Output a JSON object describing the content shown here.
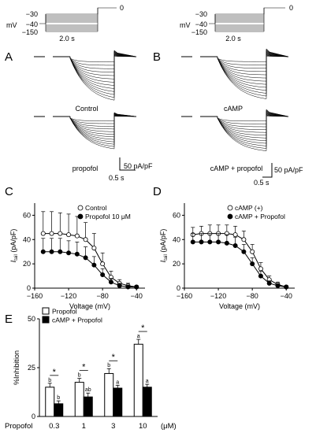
{
  "protocol": {
    "left": {
      "v_top": "−30",
      "v_top_right": "0",
      "v_mid": "−40",
      "v_bot": "−150",
      "unit": "mV",
      "duration": "2.0 s"
    },
    "right": {
      "v_top": "−30",
      "v_top_right": "0",
      "v_mid": "−40",
      "v_bot": "−150",
      "unit": "mV",
      "duration": "2.0 s"
    }
  },
  "panels": {
    "A": "A",
    "B": "B",
    "C": "C",
    "D": "D",
    "E": "E"
  },
  "traces": {
    "A_top_label": "Control",
    "A_bottom_label": "propofol",
    "B_top_label": "cAMP",
    "B_bottom_label": "cAMP + propofol",
    "scale_left_amp": "50 pA/pF",
    "scale_left_time": "0.5 s",
    "scale_right_amp": "50 pA/pF",
    "scale_right_time": "0.5 s"
  },
  "chart_data": [
    {
      "id": "C",
      "type": "scatter",
      "xlabel": "Voltage (mV)",
      "ylabel": "I tail (pA/pF)",
      "ylabel_main": "I",
      "ylabel_sub": "tail",
      "ylabel_unit": " (pA/pF)",
      "xlim": [
        -160,
        -30
      ],
      "ylim": [
        0,
        70
      ],
      "xticks": [
        -160,
        -120,
        -80,
        -40
      ],
      "xtick_labels": [
        "−160",
        "−120",
        "−80",
        "−40"
      ],
      "yticks": [
        0,
        20,
        40,
        60
      ],
      "ytick_labels": [
        "0",
        "20",
        "40",
        "60"
      ],
      "legend_position": "top-right",
      "series": [
        {
          "name": "Control",
          "marker": "open-circle",
          "x": [
            -150,
            -140,
            -130,
            -120,
            -110,
            -100,
            -90,
            -80,
            -70,
            -60,
            -50,
            -40
          ],
          "y": [
            45,
            45,
            45,
            44,
            43,
            40,
            33,
            20,
            9,
            4,
            2,
            1
          ],
          "err": [
            18,
            18,
            17,
            17,
            16,
            14,
            12,
            9,
            5,
            3,
            2,
            1
          ]
        },
        {
          "name": "Propofol 10 μM",
          "marker": "filled-circle",
          "x": [
            -150,
            -140,
            -130,
            -120,
            -110,
            -100,
            -90,
            -80,
            -70,
            -60,
            -50,
            -40
          ],
          "y": [
            30,
            30,
            30,
            29,
            28,
            25,
            19,
            11,
            5,
            2,
            1,
            1
          ],
          "err": [
            11,
            11,
            11,
            10,
            10,
            9,
            7,
            5,
            3,
            2,
            1,
            1
          ]
        }
      ]
    },
    {
      "id": "D",
      "type": "scatter",
      "xlabel": "Voltage (mV)",
      "ylabel": "I tail (pA/pF)",
      "ylabel_main": "I",
      "ylabel_sub": "tail",
      "ylabel_unit": " (pA/pF)",
      "xlim": [
        -160,
        -30
      ],
      "ylim": [
        0,
        70
      ],
      "xticks": [
        -160,
        -120,
        -80,
        -40
      ],
      "xtick_labels": [
        "−160",
        "−120",
        "−80",
        "−40"
      ],
      "yticks": [
        0,
        20,
        40,
        60
      ],
      "ytick_labels": [
        "0",
        "20",
        "40",
        "60"
      ],
      "legend_position": "top-right",
      "series": [
        {
          "name": "cAMP (+)",
          "marker": "open-circle",
          "x": [
            -150,
            -140,
            -130,
            -120,
            -110,
            -100,
            -90,
            -80,
            -70,
            -60,
            -50,
            -40
          ],
          "y": [
            44,
            45,
            45,
            45,
            45,
            44,
            40,
            30,
            16,
            7,
            3,
            1
          ],
          "err": [
            6,
            6,
            7,
            7,
            7,
            7,
            7,
            6,
            5,
            3,
            2,
            1
          ]
        },
        {
          "name": "cAMP + Propofol",
          "marker": "filled-circle",
          "x": [
            -150,
            -140,
            -130,
            -120,
            -110,
            -100,
            -90,
            -80,
            -70,
            -60,
            -50,
            -40
          ],
          "y": [
            38,
            38,
            38,
            38,
            37,
            35,
            30,
            20,
            10,
            4,
            2,
            1
          ],
          "err": [
            7,
            7,
            7,
            7,
            7,
            7,
            6,
            5,
            4,
            2,
            1,
            1
          ]
        }
      ]
    },
    {
      "id": "E",
      "type": "bar",
      "ylabel": "%Inhibition",
      "xlabel_left": "Propofol",
      "xlabel_unit": "(μM)",
      "categories": [
        "0.3",
        "1",
        "3",
        "10"
      ],
      "ylim": [
        0,
        50
      ],
      "yticks": [
        0,
        25,
        50
      ],
      "ytick_labels": [
        "0",
        "25",
        "50"
      ],
      "legend_position": "top-left",
      "series": [
        {
          "name": "Propofol",
          "fill": "white",
          "values": [
            15,
            17.5,
            22,
            37
          ],
          "err": [
            2,
            2,
            2.5,
            2.5
          ],
          "letters": [
            "b",
            "b",
            "b",
            "a"
          ]
        },
        {
          "name": "cAMP + Propofol",
          "fill": "black",
          "values": [
            6.5,
            10,
            14.5,
            15
          ],
          "err": [
            1.5,
            2,
            1.5,
            1.5
          ],
          "letters": [
            "b",
            "ab",
            "a",
            "a"
          ]
        }
      ],
      "significance": [
        "*",
        "*",
        "*",
        "*"
      ]
    }
  ]
}
